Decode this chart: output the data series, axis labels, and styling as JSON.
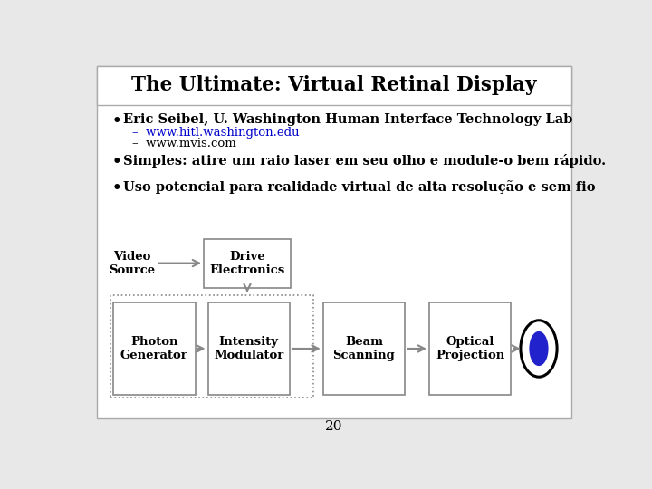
{
  "title": "The Ultimate: Virtual Retinal Display",
  "bullet1": "Eric Seibel, U. Washington Human Interface Technology Lab",
  "sub1a": "www.hitl.washington.edu",
  "sub1b": "www.mvis.com",
  "bullet2": "Simples: atire um raio laser em seu olho e module-o bem rápido.",
  "bullet3": "Uso potencial para realidade virtual de alta resolução e sem fio",
  "boxes": [
    "Photon\nGenerator",
    "Intensity\nModulator",
    "Beam\nScanning",
    "Optical\nProjection"
  ],
  "drive_box": "Drive\nElectronics",
  "video_source": "Video\nSource",
  "page_num": "20",
  "bg_color": "#e8e8e8",
  "box_edge_color": "#888888",
  "dashed_box_color": "#888888",
  "slide_bg": "#ffffff",
  "text_color": "#000000",
  "arrow_color": "#888888",
  "eye_fill": "#2222cc",
  "eye_outline": "#000000",
  "link_color": "#0000cc"
}
